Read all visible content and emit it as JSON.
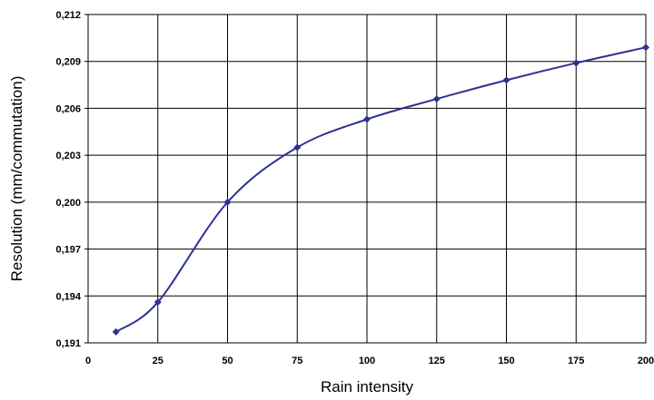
{
  "chart_data": {
    "type": "line",
    "title": "",
    "xlabel": "Rain intensity",
    "ylabel": "Resolution (mm/commutation)",
    "xlim": [
      0,
      200
    ],
    "ylim": [
      0.191,
      0.212
    ],
    "x_ticks": [
      "0",
      "25",
      "50",
      "75",
      "100",
      "125",
      "150",
      "175",
      "200"
    ],
    "y_ticks": [
      "0,191",
      "0,194",
      "0,197",
      "0,200",
      "0,203",
      "0,206",
      "0,209",
      "0,212"
    ],
    "grid": true,
    "legend": "none",
    "series": [
      {
        "color": "#2e3192",
        "smooth": true,
        "marker": "diamond",
        "points": [
          {
            "x": 10,
            "y": 0.1917
          },
          {
            "x": 25,
            "y": 0.1936
          },
          {
            "x": 50,
            "y": 0.2
          },
          {
            "x": 75,
            "y": 0.2035
          },
          {
            "x": 100,
            "y": 0.2053
          },
          {
            "x": 125,
            "y": 0.2066
          },
          {
            "x": 150,
            "y": 0.2078
          },
          {
            "x": 175,
            "y": 0.2089
          },
          {
            "x": 200,
            "y": 0.2099
          }
        ]
      }
    ]
  }
}
